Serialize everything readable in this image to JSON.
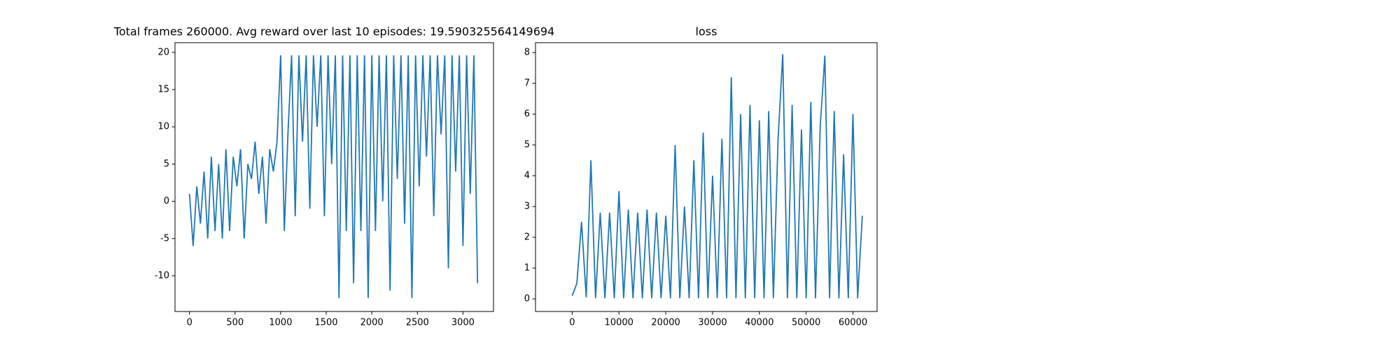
{
  "chart_data": [
    {
      "type": "line",
      "title": "Total frames 260000. Avg reward over last 10 episodes: 19.590325564149694",
      "xlim": [
        -159,
        3335
      ],
      "ylim": [
        -14.8,
        21.3
      ],
      "xticks": [
        0,
        500,
        1000,
        1500,
        2000,
        2500,
        3000
      ],
      "yticks": [
        -10,
        -5,
        0,
        5,
        10,
        15,
        20
      ],
      "series": [
        {
          "color": "#1f77b4",
          "x": [
            0,
            40,
            80,
            120,
            160,
            200,
            240,
            280,
            320,
            360,
            400,
            440,
            480,
            520,
            560,
            600,
            640,
            680,
            720,
            760,
            800,
            840,
            880,
            920,
            960,
            1000,
            1040,
            1080,
            1120,
            1160,
            1200,
            1240,
            1280,
            1320,
            1360,
            1400,
            1440,
            1480,
            1520,
            1560,
            1600,
            1640,
            1680,
            1720,
            1760,
            1800,
            1840,
            1880,
            1920,
            1960,
            2000,
            2040,
            2080,
            2120,
            2160,
            2200,
            2240,
            2280,
            2320,
            2360,
            2400,
            2440,
            2480,
            2520,
            2560,
            2600,
            2640,
            2680,
            2720,
            2760,
            2800,
            2840,
            2880,
            2920,
            2960,
            3000,
            3040,
            3080,
            3120,
            3160
          ],
          "values": [
            1,
            -6,
            2,
            -3,
            4,
            -5,
            6,
            -4,
            5,
            -5,
            7,
            -4,
            6,
            2,
            7,
            -5,
            5,
            3,
            8,
            1,
            6,
            -3,
            7,
            4,
            8,
            19.6,
            -4,
            9,
            19.6,
            -2,
            19.6,
            8,
            19.6,
            -1,
            19.6,
            10,
            19.6,
            -2,
            19.6,
            5,
            19.6,
            -13,
            19.6,
            -4,
            19.6,
            -11,
            19.6,
            -4,
            19.6,
            -13,
            19.6,
            -4,
            19.6,
            0,
            19.6,
            -12,
            19.6,
            3,
            19.6,
            -3,
            19.6,
            -13,
            19.6,
            2,
            19.6,
            6,
            19.6,
            -2,
            19.6,
            9,
            19.6,
            -9,
            19.6,
            4,
            19.6,
            -6,
            19.6,
            1,
            19.6,
            -11
          ]
        }
      ]
    },
    {
      "type": "line",
      "title": "loss",
      "xlim": [
        -7835,
        65160
      ],
      "ylim": [
        -0.41,
        8.32
      ],
      "xticks": [
        0,
        10000,
        20000,
        30000,
        40000,
        50000,
        60000
      ],
      "yticks": [
        0,
        1,
        2,
        3,
        4,
        5,
        6,
        7,
        8
      ],
      "series": [
        {
          "color": "#1f77b4",
          "x": [
            0,
            1000,
            2000,
            3000,
            4000,
            5000,
            6000,
            7000,
            8000,
            9000,
            10000,
            11000,
            12000,
            13000,
            14000,
            15000,
            16000,
            17000,
            18000,
            19000,
            20000,
            21000,
            22000,
            23000,
            24000,
            25000,
            26000,
            27000,
            28000,
            29000,
            30000,
            31000,
            32000,
            33000,
            34000,
            35000,
            36000,
            37000,
            38000,
            39000,
            40000,
            41000,
            42000,
            43000,
            44000,
            45000,
            46000,
            47000,
            48000,
            49000,
            50000,
            51000,
            52000,
            53000,
            54000,
            55000,
            56000,
            57000,
            58000,
            59000,
            60000,
            61000,
            62000
          ],
          "values": [
            0.1,
            0.5,
            2.5,
            0.05,
            4.5,
            0.02,
            2.8,
            0.02,
            2.8,
            0.02,
            3.5,
            0.02,
            2.9,
            0.02,
            2.8,
            0.02,
            2.9,
            0.02,
            2.8,
            0.02,
            2.7,
            0.02,
            5.0,
            0.02,
            3.0,
            0.02,
            4.5,
            0.02,
            5.4,
            0.02,
            4.0,
            0.02,
            5.2,
            0.02,
            7.2,
            0.02,
            6.0,
            0.02,
            6.3,
            0.02,
            5.8,
            0.02,
            6.1,
            0.02,
            5.2,
            7.95,
            0.02,
            6.3,
            0.02,
            5.5,
            0.02,
            6.4,
            0.02,
            5.6,
            7.9,
            0.02,
            6.1,
            0.02,
            4.7,
            0.02,
            6.0,
            0.02,
            2.7
          ]
        }
      ]
    }
  ]
}
